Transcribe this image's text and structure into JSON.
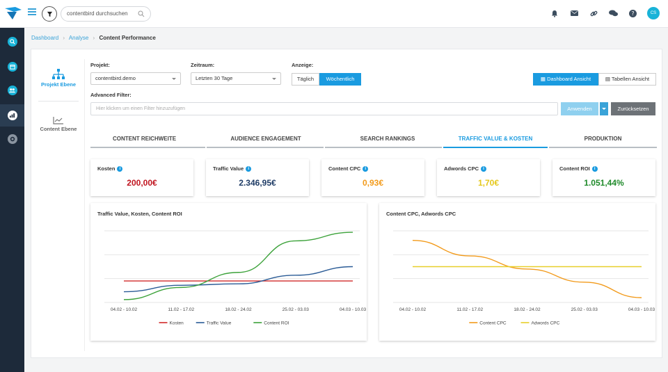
{
  "header": {
    "search_placeholder": "contentbird durchsuchen",
    "avatar_initials": "CS"
  },
  "breadcrumb": {
    "items": [
      "Dashboard",
      "Analyse"
    ],
    "current": "Content Performance"
  },
  "levels": {
    "project": "Projekt Ebene",
    "content": "Content Ebene"
  },
  "filters": {
    "projekt_label": "Projekt:",
    "projekt_value": "contentbird.demo",
    "zeitraum_label": "Zeitraum:",
    "zeitraum_value": "Letzten 30 Tage",
    "anzeige_label": "Anzeige:",
    "anzeige_options": [
      "Täglich",
      "Wöchentlich"
    ],
    "advanced_label": "Advanced Filter:",
    "advanced_placeholder": "Hier klicken um einen Filter hinzuzufügen",
    "apply": "Anwenden",
    "reset": "Zurücksetzen",
    "view_dashboard": "Dashboard Ansicht",
    "view_table": "Tabellen Ansicht"
  },
  "tabs": [
    "CONTENT REICHWEITE",
    "AUDIENCE ENGAGEMENT",
    "SEARCH RANKINGS",
    "TRAFFIC VALUE & KOSTEN",
    "PRODUKTION"
  ],
  "kpis": [
    {
      "label": "Kosten",
      "value": "200,00€",
      "color": "#c0141f"
    },
    {
      "label": "Traffic Value",
      "value": "2.346,95€",
      "color": "#1f3c66"
    },
    {
      "label": "Content CPC",
      "value": "0,93€",
      "color": "#f29a1a"
    },
    {
      "label": "Adwords CPC",
      "value": "1,70€",
      "color": "#e5c81a"
    },
    {
      "label": "Content ROI",
      "value": "1.051,44%",
      "color": "#1f8a2a"
    }
  ],
  "chart_data": [
    {
      "type": "line",
      "title": "Traffic Value, Kosten, Content ROI",
      "categories": [
        "04.02 - 10.02",
        "11.02 - 17.02",
        "18.02 - 24.02",
        "25.02 - 03.03",
        "04.03 - 10.03"
      ],
      "series": [
        {
          "name": "Kosten",
          "color": "#d12a2a",
          "values": [
            3,
            3,
            3,
            3,
            3
          ]
        },
        {
          "name": "Traffic Value",
          "color": "#2a5b96",
          "values": [
            1.5,
            2.4,
            2.6,
            3.8,
            5.0
          ]
        },
        {
          "name": "Content ROI",
          "color": "#3ca23a",
          "values": [
            0.4,
            2.1,
            4.2,
            8.6,
            9.8
          ]
        }
      ],
      "grid": true,
      "legend": "bottom"
    },
    {
      "type": "line",
      "title": "Content CPC, Adwords CPC",
      "categories": [
        "04.02 - 10.02",
        "11.02 - 17.02",
        "18.02 - 24.02",
        "25.02 - 03.03",
        "04.03 - 10.03"
      ],
      "series": [
        {
          "name": "Content CPC",
          "color": "#f29a1a",
          "values": [
            2.6,
            1.95,
            1.4,
            0.85,
            0.2
          ]
        },
        {
          "name": "Adwords CPC",
          "color": "#e8cf2a",
          "values": [
            1.5,
            1.5,
            1.5,
            1.5,
            1.5
          ]
        }
      ],
      "grid": true,
      "legend": "bottom"
    }
  ]
}
